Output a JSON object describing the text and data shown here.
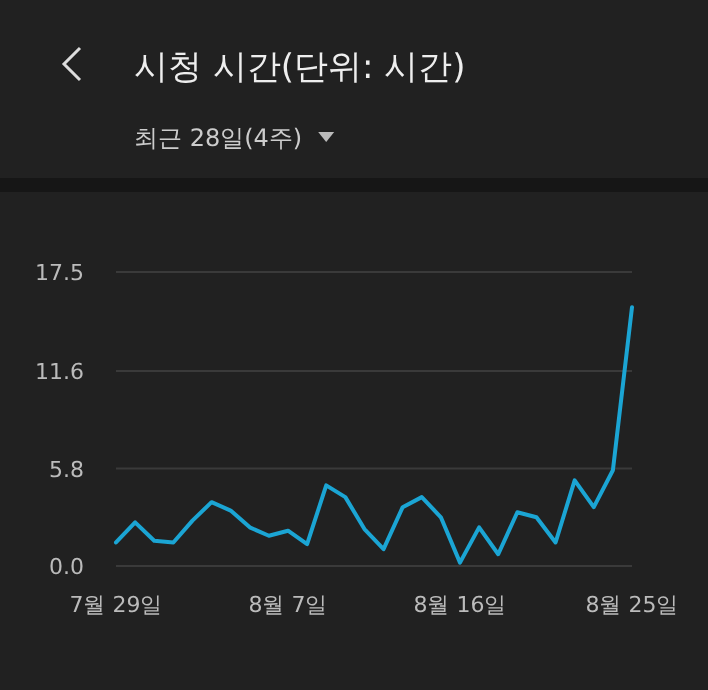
{
  "chart_data": {
    "type": "line",
    "title": "시청 시간(단위: 시간)",
    "subtitle": "최근 28일(4주)",
    "categories": [
      "7월 29일",
      null,
      null,
      null,
      null,
      null,
      null,
      null,
      null,
      "8월 7일",
      null,
      null,
      null,
      null,
      null,
      null,
      null,
      null,
      "8월 16일",
      null,
      null,
      null,
      null,
      null,
      null,
      null,
      null,
      "8월 25일"
    ],
    "series": [
      {
        "color": "#1ba5d4",
        "values": [
          1.4,
          2.6,
          1.5,
          1.4,
          2.7,
          3.8,
          3.3,
          2.3,
          1.8,
          2.1,
          1.3,
          4.8,
          4.1,
          2.2,
          1.0,
          3.5,
          4.1,
          2.9,
          0.2,
          2.3,
          0.7,
          3.2,
          2.9,
          1.4,
          5.1,
          3.5,
          5.7,
          15.4
        ]
      }
    ],
    "ylim": [
      0,
      17.5
    ],
    "yticks": [
      {
        "value": 0,
        "label": "0.0"
      },
      {
        "value": 5.8,
        "label": "5.8"
      },
      {
        "value": 11.6,
        "label": "11.6"
      },
      {
        "value": 17.5,
        "label": "17.5"
      }
    ],
    "grid": "y",
    "marker": "none",
    "line_style": "solid"
  }
}
